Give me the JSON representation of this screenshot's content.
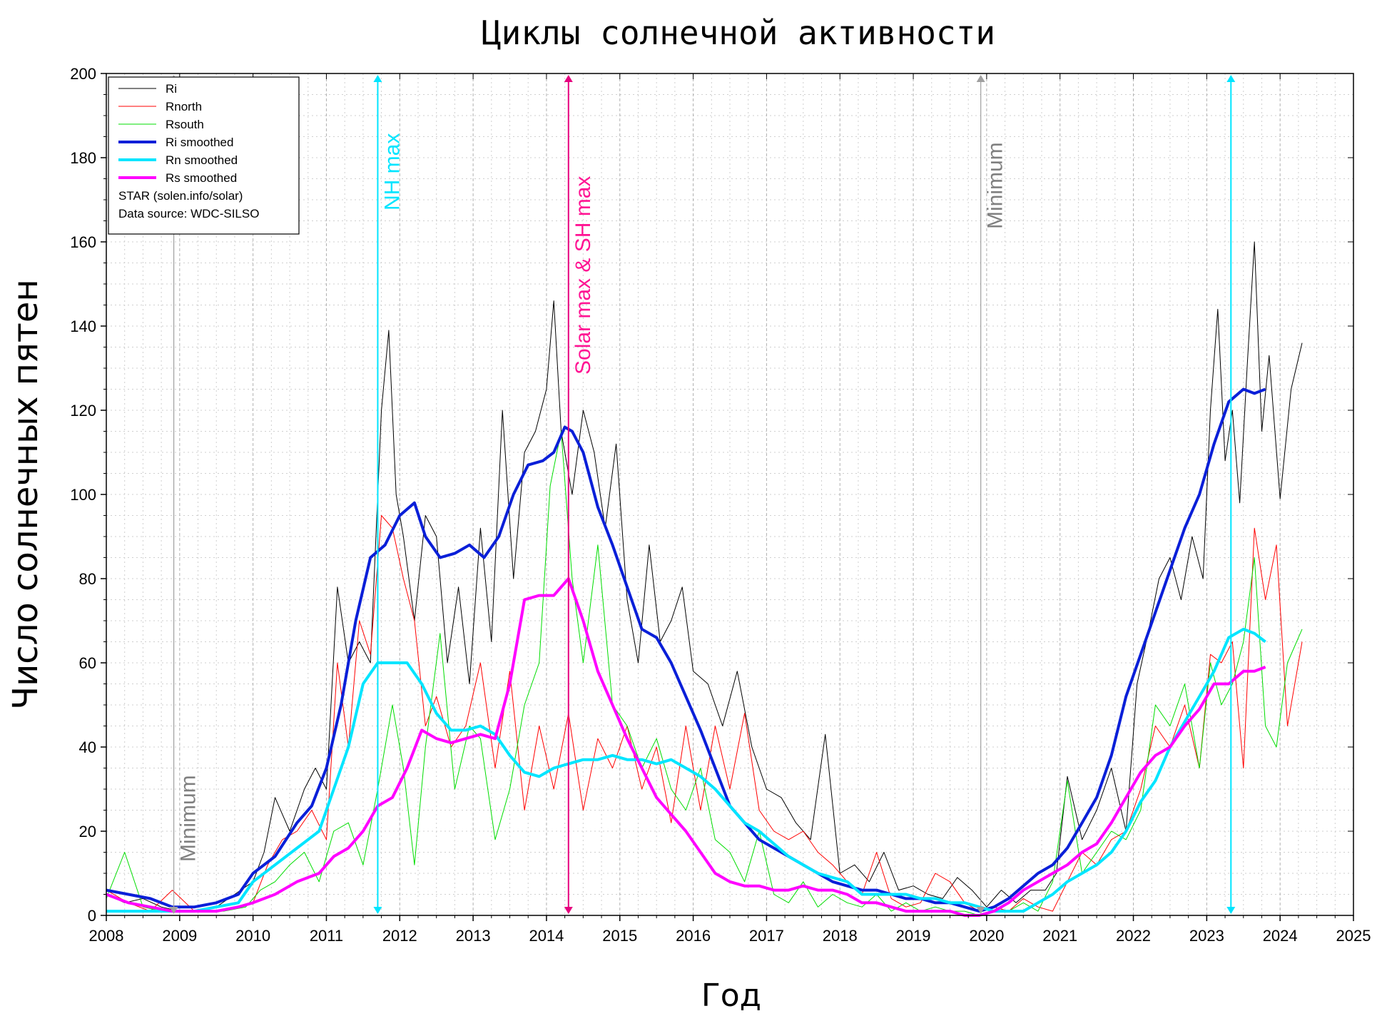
{
  "chart_data": {
    "type": "line",
    "title": "Циклы солнечной активности",
    "xlabel": "Год",
    "ylabel": "Число солнечных пятен",
    "xlim": [
      2008,
      2025
    ],
    "ylim": [
      0,
      200
    ],
    "x_ticks": [
      "2008",
      "2009",
      "2010",
      "2011",
      "2012",
      "2013",
      "2014",
      "2015",
      "2016",
      "2017",
      "2018",
      "2019",
      "2020",
      "2021",
      "2022",
      "2023",
      "2024",
      "2025"
    ],
    "y_ticks": [
      "0",
      "20",
      "40",
      "60",
      "80",
      "100",
      "120",
      "140",
      "160",
      "180",
      "200"
    ],
    "grid": true,
    "legend_position": "top-left",
    "legend_notes": [
      "STAR (solen.info/solar)",
      "Data source: WDC-SILSO"
    ],
    "series": [
      {
        "name": "Ri",
        "color": "#000000",
        "width": 1,
        "x": [
          2008.0,
          2008.25,
          2008.5,
          2008.75,
          2009.0,
          2009.25,
          2009.5,
          2009.75,
          2010.0,
          2010.15,
          2010.3,
          2010.5,
          2010.7,
          2010.85,
          2011.0,
          2011.15,
          2011.3,
          2011.45,
          2011.6,
          2011.75,
          2011.85,
          2011.95,
          2012.05,
          2012.2,
          2012.35,
          2012.5,
          2012.65,
          2012.8,
          2012.95,
          2013.1,
          2013.25,
          2013.4,
          2013.55,
          2013.7,
          2013.85,
          2014.0,
          2014.1,
          2014.2,
          2014.35,
          2014.5,
          2014.65,
          2014.8,
          2014.95,
          2015.1,
          2015.25,
          2015.4,
          2015.55,
          2015.7,
          2015.85,
          2016.0,
          2016.2,
          2016.4,
          2016.6,
          2016.8,
          2017.0,
          2017.2,
          2017.4,
          2017.6,
          2017.8,
          2018.0,
          2018.2,
          2018.4,
          2018.6,
          2018.8,
          2019.0,
          2019.2,
          2019.4,
          2019.6,
          2019.8,
          2020.0,
          2020.2,
          2020.4,
          2020.6,
          2020.8,
          2020.95,
          2021.1,
          2021.3,
          2021.5,
          2021.7,
          2021.9,
          2022.05,
          2022.2,
          2022.35,
          2022.5,
          2022.65,
          2022.8,
          2022.95,
          2023.05,
          2023.15,
          2023.25,
          2023.35,
          2023.45,
          2023.55,
          2023.65,
          2023.75,
          2023.85,
          2024.0,
          2024.15,
          2024.3
        ],
        "y": [
          5,
          3,
          4,
          2,
          1,
          1,
          2,
          5,
          8,
          15,
          28,
          20,
          30,
          35,
          30,
          78,
          60,
          65,
          60,
          120,
          139,
          100,
          90,
          70,
          95,
          90,
          60,
          78,
          55,
          92,
          65,
          120,
          80,
          110,
          115,
          125,
          146,
          115,
          100,
          120,
          110,
          92,
          112,
          75,
          60,
          88,
          65,
          70,
          78,
          58,
          55,
          45,
          58,
          40,
          30,
          28,
          22,
          18,
          43,
          10,
          12,
          8,
          15,
          6,
          7,
          5,
          4,
          9,
          6,
          2,
          6,
          3,
          6,
          6,
          10,
          33,
          18,
          25,
          35,
          20,
          55,
          67,
          80,
          85,
          75,
          90,
          80,
          120,
          144,
          108,
          120,
          98,
          130,
          160,
          115,
          133,
          99,
          125,
          136
        ]
      },
      {
        "name": "Rnorth",
        "color": "#ff0000",
        "width": 1,
        "x": [
          2008.0,
          2008.3,
          2008.6,
          2008.9,
          2009.2,
          2009.5,
          2009.8,
          2010.0,
          2010.2,
          2010.4,
          2010.6,
          2010.8,
          2011.0,
          2011.15,
          2011.3,
          2011.45,
          2011.6,
          2011.75,
          2011.9,
          2012.05,
          2012.2,
          2012.35,
          2012.5,
          2012.7,
          2012.9,
          2013.1,
          2013.3,
          2013.5,
          2013.7,
          2013.9,
          2014.1,
          2014.3,
          2014.5,
          2014.7,
          2014.9,
          2015.1,
          2015.3,
          2015.5,
          2015.7,
          2015.9,
          2016.1,
          2016.3,
          2016.5,
          2016.7,
          2016.9,
          2017.1,
          2017.3,
          2017.5,
          2017.7,
          2017.9,
          2018.1,
          2018.3,
          2018.5,
          2018.7,
          2018.9,
          2019.1,
          2019.3,
          2019.5,
          2019.7,
          2019.9,
          2020.1,
          2020.3,
          2020.5,
          2020.7,
          2020.9,
          2021.1,
          2021.3,
          2021.5,
          2021.7,
          2021.9,
          2022.1,
          2022.3,
          2022.5,
          2022.7,
          2022.9,
          2023.05,
          2023.2,
          2023.35,
          2023.5,
          2023.65,
          2023.8,
          2023.95,
          2024.1,
          2024.3
        ],
        "y": [
          6,
          3,
          1,
          6,
          1,
          1,
          2,
          3,
          12,
          18,
          20,
          25,
          18,
          60,
          40,
          70,
          62,
          95,
          92,
          80,
          70,
          45,
          52,
          40,
          45,
          60,
          35,
          58,
          25,
          45,
          30,
          48,
          25,
          42,
          35,
          45,
          30,
          40,
          22,
          45,
          25,
          45,
          30,
          48,
          25,
          20,
          18,
          20,
          15,
          12,
          8,
          5,
          15,
          4,
          2,
          3,
          10,
          8,
          3,
          1,
          2,
          1,
          4,
          2,
          1,
          8,
          15,
          12,
          18,
          20,
          30,
          45,
          40,
          50,
          35,
          62,
          60,
          65,
          35,
          92,
          75,
          88,
          45,
          65
        ]
      },
      {
        "name": "Rsouth",
        "color": "#00dd00",
        "width": 1,
        "x": [
          2008.0,
          2008.25,
          2008.5,
          2008.75,
          2009.0,
          2009.3,
          2009.6,
          2009.9,
          2010.1,
          2010.3,
          2010.5,
          2010.7,
          2010.9,
          2011.1,
          2011.3,
          2011.5,
          2011.7,
          2011.9,
          2012.05,
          2012.2,
          2012.35,
          2012.55,
          2012.75,
          2012.95,
          2013.1,
          2013.3,
          2013.5,
          2013.7,
          2013.9,
          2014.05,
          2014.2,
          2014.35,
          2014.5,
          2014.7,
          2014.9,
          2015.1,
          2015.3,
          2015.5,
          2015.7,
          2015.9,
          2016.1,
          2016.3,
          2016.5,
          2016.7,
          2016.9,
          2017.1,
          2017.3,
          2017.5,
          2017.7,
          2017.9,
          2018.1,
          2018.3,
          2018.5,
          2018.7,
          2018.9,
          2019.1,
          2019.3,
          2019.5,
          2019.7,
          2019.9,
          2020.1,
          2020.3,
          2020.5,
          2020.7,
          2020.9,
          2021.1,
          2021.3,
          2021.5,
          2021.7,
          2021.9,
          2022.1,
          2022.3,
          2022.5,
          2022.7,
          2022.9,
          2023.05,
          2023.2,
          2023.35,
          2023.5,
          2023.65,
          2023.8,
          2023.95,
          2024.1,
          2024.3
        ],
        "y": [
          4,
          15,
          2,
          1,
          1,
          1,
          1,
          2,
          6,
          8,
          12,
          15,
          8,
          20,
          22,
          12,
          30,
          50,
          35,
          12,
          40,
          67,
          30,
          45,
          42,
          18,
          30,
          50,
          60,
          102,
          115,
          80,
          60,
          88,
          50,
          45,
          35,
          42,
          30,
          25,
          35,
          18,
          15,
          8,
          20,
          5,
          3,
          8,
          2,
          5,
          3,
          2,
          5,
          1,
          3,
          1,
          2,
          1,
          1,
          0,
          1,
          1,
          3,
          1,
          8,
          32,
          10,
          15,
          20,
          18,
          25,
          50,
          45,
          55,
          35,
          60,
          50,
          55,
          65,
          85,
          45,
          40,
          60,
          68
        ]
      },
      {
        "name": "Ri smoothed",
        "color": "#0a1fd8",
        "width": 4,
        "x": [
          2008.0,
          2008.3,
          2008.6,
          2008.9,
          2009.2,
          2009.5,
          2009.8,
          2010.0,
          2010.3,
          2010.6,
          2010.8,
          2011.0,
          2011.2,
          2011.4,
          2011.6,
          2011.8,
          2012.0,
          2012.2,
          2012.35,
          2012.55,
          2012.75,
          2012.95,
          2013.15,
          2013.35,
          2013.55,
          2013.75,
          2013.95,
          2014.1,
          2014.25,
          2014.35,
          2014.5,
          2014.7,
          2014.9,
          2015.1,
          2015.3,
          2015.5,
          2015.7,
          2015.9,
          2016.1,
          2016.3,
          2016.5,
          2016.7,
          2016.9,
          2017.1,
          2017.3,
          2017.5,
          2017.7,
          2017.9,
          2018.1,
          2018.3,
          2018.5,
          2018.7,
          2018.9,
          2019.1,
          2019.3,
          2019.5,
          2019.7,
          2019.9,
          2020.1,
          2020.3,
          2020.5,
          2020.7,
          2020.9,
          2021.1,
          2021.3,
          2021.5,
          2021.7,
          2021.9,
          2022.1,
          2022.3,
          2022.5,
          2022.7,
          2022.9,
          2023.1,
          2023.3,
          2023.5,
          2023.65,
          2023.8
        ],
        "y": [
          6,
          5,
          4,
          2,
          2,
          3,
          5,
          10,
          14,
          22,
          26,
          35,
          50,
          70,
          85,
          88,
          95,
          98,
          90,
          85,
          86,
          88,
          85,
          90,
          100,
          107,
          108,
          110,
          116,
          115,
          110,
          97,
          88,
          78,
          68,
          66,
          60,
          52,
          44,
          35,
          26,
          22,
          18,
          16,
          14,
          12,
          10,
          8,
          7,
          6,
          6,
          5,
          4,
          4,
          3,
          3,
          2,
          1,
          2,
          4,
          7,
          10,
          12,
          16,
          22,
          28,
          38,
          52,
          62,
          72,
          82,
          92,
          100,
          112,
          122,
          125,
          124,
          125
        ]
      },
      {
        "name": "Rn smoothed",
        "color": "#00e5ff",
        "width": 4,
        "x": [
          2008.0,
          2008.3,
          2008.6,
          2008.9,
          2009.2,
          2009.5,
          2009.8,
          2010.0,
          2010.3,
          2010.6,
          2010.9,
          2011.1,
          2011.3,
          2011.5,
          2011.7,
          2011.9,
          2012.1,
          2012.3,
          2012.5,
          2012.7,
          2012.9,
          2013.1,
          2013.3,
          2013.5,
          2013.7,
          2013.9,
          2014.1,
          2014.3,
          2014.5,
          2014.7,
          2014.9,
          2015.1,
          2015.3,
          2015.5,
          2015.7,
          2015.9,
          2016.1,
          2016.3,
          2016.5,
          2016.7,
          2016.9,
          2017.1,
          2017.3,
          2017.5,
          2017.7,
          2017.9,
          2018.1,
          2018.3,
          2018.5,
          2018.7,
          2018.9,
          2019.1,
          2019.3,
          2019.5,
          2019.7,
          2019.9,
          2020.1,
          2020.3,
          2020.5,
          2020.7,
          2020.9,
          2021.1,
          2021.3,
          2021.5,
          2021.7,
          2021.9,
          2022.1,
          2022.3,
          2022.5,
          2022.7,
          2022.9,
          2023.1,
          2023.3,
          2023.5,
          2023.65,
          2023.8
        ],
        "y": [
          1,
          1,
          1,
          1,
          1,
          2,
          3,
          8,
          12,
          16,
          20,
          30,
          40,
          55,
          60,
          60,
          60,
          55,
          48,
          44,
          44,
          45,
          43,
          38,
          34,
          33,
          35,
          36,
          37,
          37,
          38,
          37,
          37,
          36,
          37,
          35,
          33,
          30,
          26,
          22,
          20,
          17,
          14,
          12,
          10,
          9,
          8,
          5,
          5,
          5,
          5,
          4,
          4,
          3,
          3,
          2,
          1,
          1,
          1,
          3,
          5,
          8,
          10,
          12,
          15,
          20,
          27,
          32,
          40,
          46,
          52,
          58,
          66,
          68,
          67,
          65
        ]
      },
      {
        "name": "Rs smoothed",
        "color": "#ff00ff",
        "width": 4,
        "x": [
          2008.0,
          2008.3,
          2008.6,
          2008.9,
          2009.2,
          2009.5,
          2009.8,
          2010.0,
          2010.3,
          2010.6,
          2010.9,
          2011.1,
          2011.3,
          2011.5,
          2011.7,
          2011.9,
          2012.1,
          2012.3,
          2012.5,
          2012.7,
          2012.9,
          2013.1,
          2013.3,
          2013.5,
          2013.7,
          2013.9,
          2014.1,
          2014.3,
          2014.5,
          2014.7,
          2014.9,
          2015.1,
          2015.3,
          2015.5,
          2015.7,
          2015.9,
          2016.1,
          2016.3,
          2016.5,
          2016.7,
          2016.9,
          2017.1,
          2017.3,
          2017.5,
          2017.7,
          2017.9,
          2018.1,
          2018.3,
          2018.5,
          2018.7,
          2018.9,
          2019.1,
          2019.3,
          2019.5,
          2019.7,
          2019.9,
          2020.1,
          2020.3,
          2020.5,
          2020.7,
          2020.9,
          2021.1,
          2021.3,
          2021.5,
          2021.7,
          2021.9,
          2022.1,
          2022.3,
          2022.5,
          2022.7,
          2022.9,
          2023.1,
          2023.3,
          2023.5,
          2023.65,
          2023.8
        ],
        "y": [
          5,
          3,
          2,
          1,
          1,
          1,
          2,
          3,
          5,
          8,
          10,
          14,
          16,
          20,
          26,
          28,
          35,
          44,
          42,
          41,
          42,
          43,
          42,
          55,
          75,
          76,
          76,
          80,
          70,
          58,
          50,
          42,
          35,
          28,
          24,
          20,
          15,
          10,
          8,
          7,
          7,
          6,
          6,
          7,
          6,
          6,
          5,
          3,
          3,
          2,
          1,
          1,
          1,
          1,
          0,
          0,
          1,
          3,
          6,
          8,
          10,
          12,
          15,
          17,
          22,
          28,
          34,
          38,
          40,
          45,
          49,
          55,
          55,
          58,
          58,
          59
        ]
      }
    ],
    "markers": [
      {
        "label": "Minimum",
        "x": 2008.92,
        "color": "#a0a0a0",
        "text_color": "#808080"
      },
      {
        "label": "NH max",
        "x": 2011.7,
        "color": "#00e5ff",
        "text_color": "#00e5ff"
      },
      {
        "label": "Solar max & SH max",
        "x": 2014.3,
        "color": "#e6007e",
        "text_color": "#ff1493"
      },
      {
        "label": "Minimum",
        "x": 2019.92,
        "color": "#a0a0a0",
        "text_color": "#808080"
      },
      {
        "label": "",
        "x": 2023.33,
        "color": "#00e5ff",
        "text_color": "#00e5ff"
      }
    ]
  }
}
